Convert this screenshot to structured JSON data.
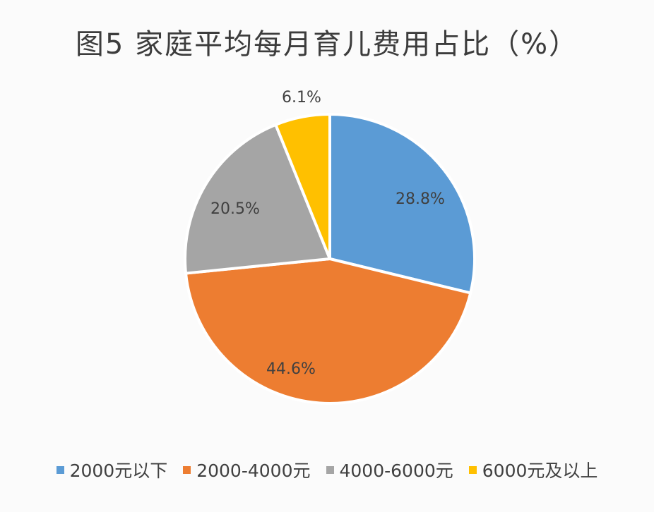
{
  "title": "图5 家庭平均每月育儿费用占比（%）",
  "chart_data": {
    "type": "pie",
    "title": "图5 家庭平均每月育儿费用占比（%）",
    "categories": [
      "2000元以下",
      "2000-4000元",
      "4000-6000元",
      "6000元及以上"
    ],
    "values": [
      28.8,
      44.6,
      20.5,
      6.1
    ],
    "labels": [
      "28.8%",
      "44.6%",
      "20.5%",
      "6.1%"
    ],
    "colors": [
      "#5b9bd5",
      "#ed7d31",
      "#a5a5a5",
      "#ffc000"
    ],
    "start_angle": "12 o'clock",
    "direction": "clockwise",
    "legend_position": "bottom"
  },
  "legend": [
    {
      "label": "2000元以下",
      "color": "#5b9bd5"
    },
    {
      "label": "2000-4000元",
      "color": "#ed7d31"
    },
    {
      "label": "4000-6000元",
      "color": "#a5a5a5"
    },
    {
      "label": "6000元及以上",
      "color": "#ffc000"
    }
  ]
}
